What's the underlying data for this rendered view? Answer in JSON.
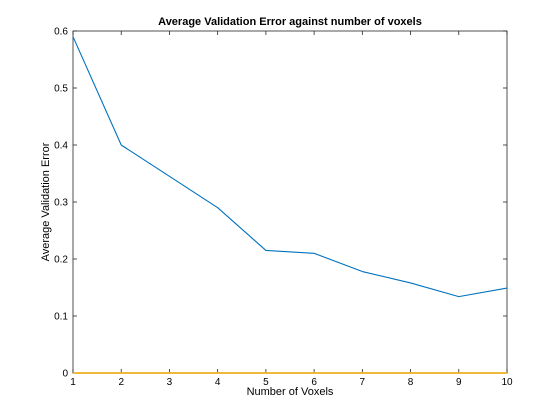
{
  "chart_data": {
    "type": "line",
    "title": "Average Validation Error against number of voxels",
    "xlabel": "Number of Voxels",
    "ylabel": "Average Validation Error",
    "xlim": [
      1,
      10
    ],
    "ylim": [
      0,
      0.6
    ],
    "x_ticks": [
      "1",
      "2",
      "3",
      "4",
      "5",
      "6",
      "7",
      "8",
      "9",
      "10"
    ],
    "y_ticks": [
      "0",
      "0.1",
      "0.2",
      "0.3",
      "0.4",
      "0.5",
      "0.6"
    ],
    "grid": false,
    "series": [
      {
        "color": "#0072bd",
        "x": [
          1,
          2,
          3,
          4,
          5,
          6,
          7,
          8,
          9,
          10
        ],
        "y": [
          0.59,
          0.4,
          0.345,
          0.29,
          0.215,
          0.21,
          0.178,
          0.158,
          0.134,
          0.149
        ]
      },
      {
        "color": "#edb120",
        "x": [
          1,
          10
        ],
        "y": [
          0,
          0
        ]
      }
    ]
  }
}
